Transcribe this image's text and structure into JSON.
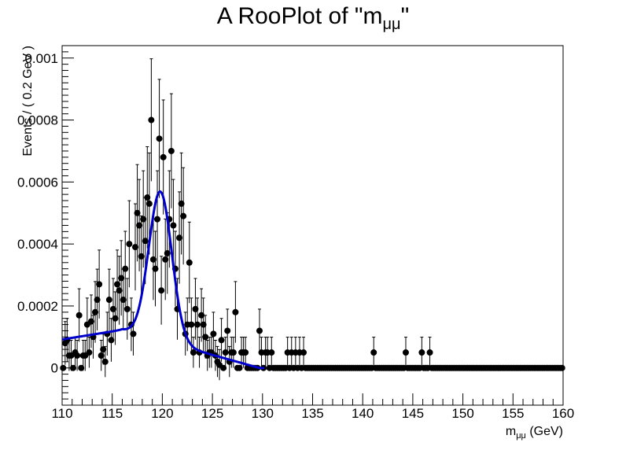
{
  "chart_data": {
    "type": "scatter",
    "title": "A RooPlot of \"m",
    "title_subscript": "μμ",
    "title_end": "\"",
    "xlabel_main": "m",
    "xlabel_sub": "μμ",
    "xlabel_unit": " (GeV)",
    "ylabel": "Events / ( 0.2 GeV )",
    "xlim": [
      110,
      160
    ],
    "ylim": [
      -0.00012,
      0.00104
    ],
    "x_ticks": [
      "110",
      "115",
      "120",
      "125",
      "130",
      "135",
      "140",
      "145",
      "150",
      "155",
      "160"
    ],
    "y_ticks": [
      {
        "value": 0,
        "label": "0"
      },
      {
        "value": 0.0002,
        "label": "0.0002"
      },
      {
        "value": 0.0004,
        "label": "0.0004"
      },
      {
        "value": 0.0006,
        "label": "0.0006"
      },
      {
        "value": 0.0008,
        "label": "0.0008"
      },
      {
        "value": 0.001,
        "label": "0.001"
      }
    ],
    "grid": false,
    "series": [
      {
        "kind": "data_points",
        "color": "#000000",
        "points": [
          {
            "x": 110.1,
            "y": 0
          },
          {
            "x": 110.3,
            "y": 8e-05
          },
          {
            "x": 110.5,
            "y": 9e-05
          },
          {
            "x": 110.7,
            "y": 4e-05
          },
          {
            "x": 110.9,
            "y": 4e-05
          },
          {
            "x": 111.1,
            "y": 0
          },
          {
            "x": 111.3,
            "y": 5e-05
          },
          {
            "x": 111.5,
            "y": 4e-05
          },
          {
            "x": 111.7,
            "y": 0.00017
          },
          {
            "x": 111.9,
            "y": 0
          },
          {
            "x": 112.1,
            "y": 4e-05
          },
          {
            "x": 112.3,
            "y": 4e-05
          },
          {
            "x": 112.5,
            "y": 0.00014
          },
          {
            "x": 112.7,
            "y": 5e-05
          },
          {
            "x": 112.9,
            "y": 0.00015
          },
          {
            "x": 113.1,
            "y": 0.0001
          },
          {
            "x": 113.3,
            "y": 0.00018
          },
          {
            "x": 113.5,
            "y": 0.00022
          },
          {
            "x": 113.7,
            "y": 0.00027
          },
          {
            "x": 113.9,
            "y": 4e-05
          },
          {
            "x": 114.1,
            "y": 6e-05
          },
          {
            "x": 114.3,
            "y": 2e-05
          },
          {
            "x": 114.5,
            "y": 0.00011
          },
          {
            "x": 114.7,
            "y": 0.00022
          },
          {
            "x": 114.9,
            "y": 9e-05
          },
          {
            "x": 115.1,
            "y": 0.00019
          },
          {
            "x": 115.3,
            "y": 0.00016
          },
          {
            "x": 115.5,
            "y": 0.00027
          },
          {
            "x": 115.7,
            "y": 0.00025
          },
          {
            "x": 115.9,
            "y": 0.00029
          },
          {
            "x": 116.1,
            "y": 0.00022
          },
          {
            "x": 116.3,
            "y": 0.00032
          },
          {
            "x": 116.5,
            "y": 0.00019
          },
          {
            "x": 116.7,
            "y": 0.0004
          },
          {
            "x": 116.9,
            "y": 0.00014
          },
          {
            "x": 117.1,
            "y": 0.00011
          },
          {
            "x": 117.3,
            "y": 0.00039
          },
          {
            "x": 117.5,
            "y": 0.0005
          },
          {
            "x": 117.7,
            "y": 0.00046
          },
          {
            "x": 117.9,
            "y": 0.00036
          },
          {
            "x": 118.1,
            "y": 0.00048
          },
          {
            "x": 118.3,
            "y": 0.00041
          },
          {
            "x": 118.5,
            "y": 0.00055
          },
          {
            "x": 118.7,
            "y": 0.00053
          },
          {
            "x": 118.9,
            "y": 0.0008
          },
          {
            "x": 119.1,
            "y": 0.00035
          },
          {
            "x": 119.3,
            "y": 0.00032
          },
          {
            "x": 119.5,
            "y": 0.00048
          },
          {
            "x": 119.7,
            "y": 0.00074
          },
          {
            "x": 119.9,
            "y": 0.00025
          },
          {
            "x": 120.1,
            "y": 0.00068
          },
          {
            "x": 120.3,
            "y": 0.00035
          },
          {
            "x": 120.5,
            "y": 0.00037
          },
          {
            "x": 120.7,
            "y": 0.00048
          },
          {
            "x": 120.9,
            "y": 0.0007
          },
          {
            "x": 121.1,
            "y": 0.00046
          },
          {
            "x": 121.3,
            "y": 0.00032
          },
          {
            "x": 121.5,
            "y": 0.00019
          },
          {
            "x": 121.7,
            "y": 0.00042
          },
          {
            "x": 121.9,
            "y": 0.00053
          },
          {
            "x": 122.1,
            "y": 0.00049
          },
          {
            "x": 122.3,
            "y": 0.00011
          },
          {
            "x": 122.5,
            "y": 0.00014
          },
          {
            "x": 122.7,
            "y": 0.00034
          },
          {
            "x": 122.9,
            "y": 0.00014
          },
          {
            "x": 123.1,
            "y": 5e-05
          },
          {
            "x": 123.3,
            "y": 0.00019
          },
          {
            "x": 123.5,
            "y": 0.00014
          },
          {
            "x": 123.7,
            "y": 5e-05
          },
          {
            "x": 123.9,
            "y": 0.00017
          },
          {
            "x": 124.1,
            "y": 0.00014
          },
          {
            "x": 124.3,
            "y": 0.0001
          },
          {
            "x": 124.5,
            "y": 4e-05
          },
          {
            "x": 124.7,
            "y": 5e-05
          },
          {
            "x": 124.9,
            "y": 5e-05
          },
          {
            "x": 125.1,
            "y": 0.00011
          },
          {
            "x": 125.3,
            "y": 4e-05
          },
          {
            "x": 125.5,
            "y": 2e-05
          },
          {
            "x": 125.7,
            "y": 1e-05
          },
          {
            "x": 125.9,
            "y": 9e-05
          },
          {
            "x": 126.1,
            "y": 0
          },
          {
            "x": 126.3,
            "y": 5e-05
          },
          {
            "x": 126.5,
            "y": 0.00012
          },
          {
            "x": 126.7,
            "y": 2e-05
          },
          {
            "x": 126.9,
            "y": 5e-05
          },
          {
            "x": 127.1,
            "y": 5e-05
          },
          {
            "x": 127.3,
            "y": 0.00018
          },
          {
            "x": 127.5,
            "y": 0
          },
          {
            "x": 127.7,
            "y": 0
          },
          {
            "x": 127.9,
            "y": 5e-05
          },
          {
            "x": 128.1,
            "y": 5e-05
          },
          {
            "x": 128.3,
            "y": 5e-05
          },
          {
            "x": 128.5,
            "y": 0
          },
          {
            "x": 128.7,
            "y": 0
          },
          {
            "x": 128.9,
            "y": 0
          },
          {
            "x": 129.1,
            "y": 0
          },
          {
            "x": 129.3,
            "y": 0
          },
          {
            "x": 129.5,
            "y": 0
          },
          {
            "x": 129.7,
            "y": 0.00012
          },
          {
            "x": 129.9,
            "y": 5e-05
          },
          {
            "x": 130.1,
            "y": 0
          },
          {
            "x": 130.3,
            "y": 5e-05
          },
          {
            "x": 130.5,
            "y": 5e-05
          },
          {
            "x": 130.7,
            "y": 0
          },
          {
            "x": 130.9,
            "y": 5e-05
          },
          {
            "x": 131.1,
            "y": 0
          },
          {
            "x": 131.3,
            "y": 0
          },
          {
            "x": 131.5,
            "y": 0
          },
          {
            "x": 131.7,
            "y": 0
          },
          {
            "x": 131.9,
            "y": 0
          },
          {
            "x": 132.1,
            "y": 0
          },
          {
            "x": 132.3,
            "y": 0
          },
          {
            "x": 132.5,
            "y": 5e-05
          },
          {
            "x": 132.7,
            "y": 0
          },
          {
            "x": 132.9,
            "y": 5e-05
          },
          {
            "x": 133.1,
            "y": 0
          },
          {
            "x": 133.3,
            "y": 5e-05
          },
          {
            "x": 133.5,
            "y": 0
          },
          {
            "x": 133.7,
            "y": 5e-05
          },
          {
            "x": 133.9,
            "y": 0
          },
          {
            "x": 134.1,
            "y": 5e-05
          },
          {
            "x": 134.3,
            "y": 0
          },
          {
            "x": 141.1,
            "y": 5e-05
          },
          {
            "x": 144.3,
            "y": 5e-05
          },
          {
            "x": 145.9,
            "y": 5e-05
          },
          {
            "x": 146.7,
            "y": 5e-05
          }
        ]
      },
      {
        "kind": "fit_curve",
        "color": "#0000cc",
        "peak_x": 119.8,
        "peak_y": 0.000578,
        "x_range": [
          110,
          130.2
        ]
      }
    ]
  }
}
